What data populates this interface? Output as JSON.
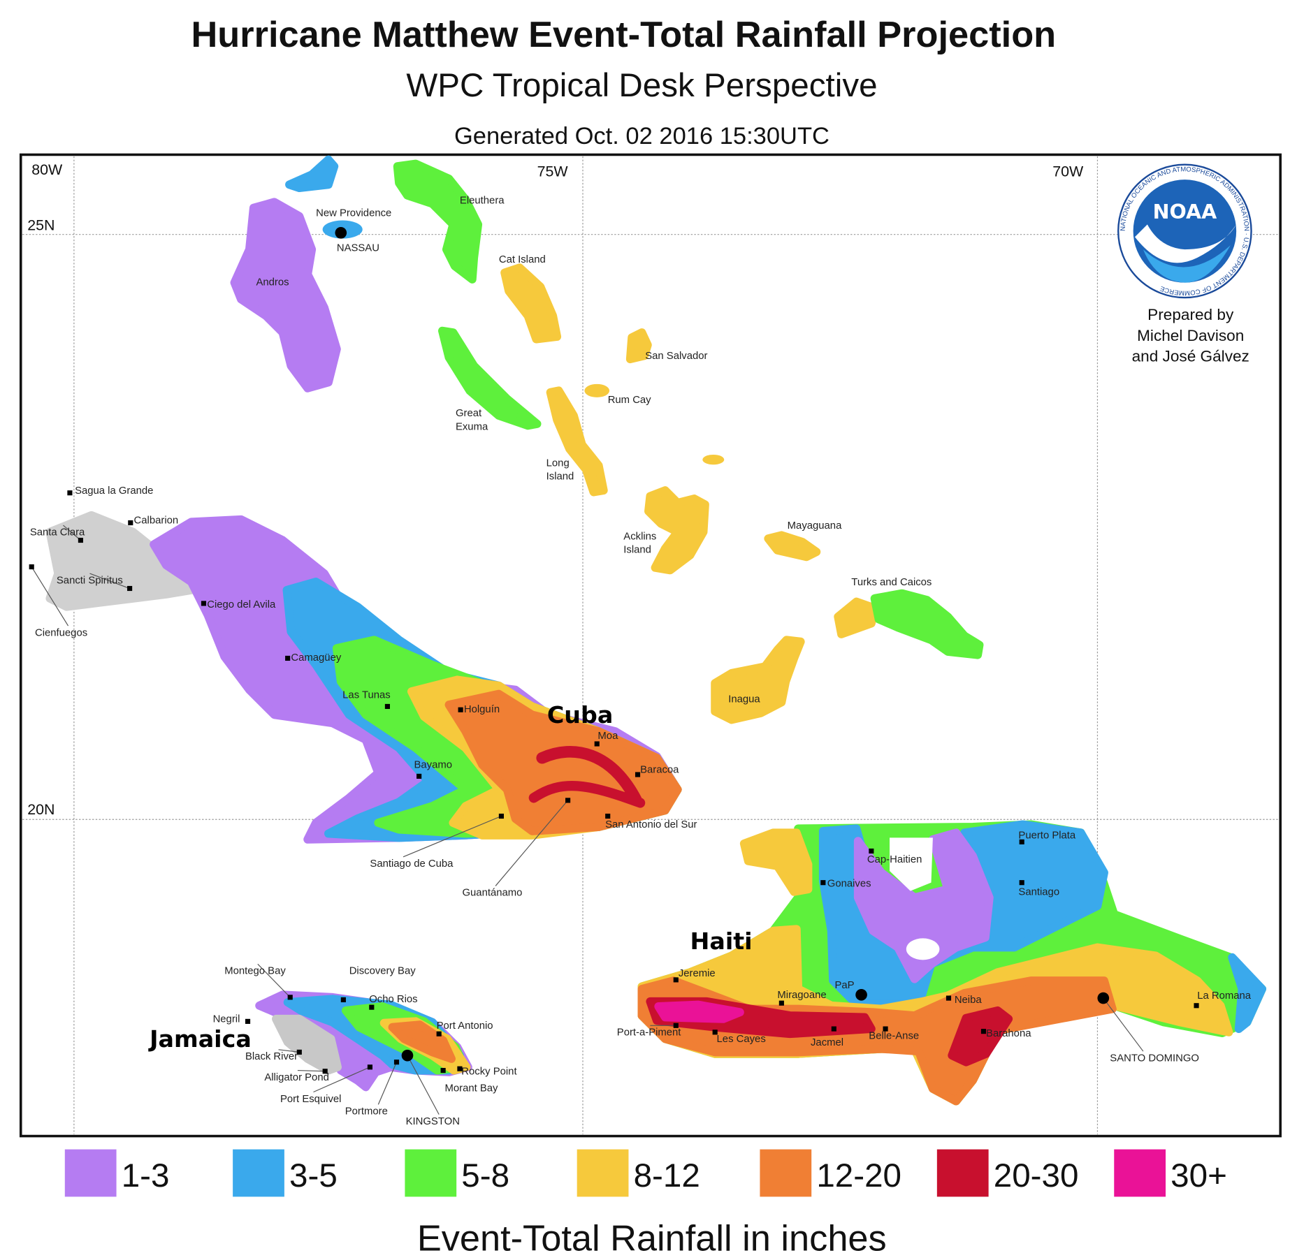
{
  "title": "Hurricane Matthew Event-Total Rainfall Projection",
  "subtitle": "WPC Tropical Desk Perspective",
  "generated": "Generated Oct. 02 2016 15:30UTC",
  "axes": {
    "lon": [
      "80W",
      "75W",
      "70W"
    ],
    "lat": [
      "25N",
      "20N"
    ]
  },
  "credits": {
    "lines": [
      "Prepared by",
      "Michel Davison",
      "and José Gálvez"
    ],
    "logo_text": "NOAA",
    "logo_ring": "NATIONAL OCEANIC AND ATMOSPHERIC ADMINISTRATION · U.S. DEPARTMENT OF COMMERCE"
  },
  "regions": {
    "cuba": "Cuba",
    "haiti": "Haiti",
    "jamaica": "Jamaica"
  },
  "places": [
    "New Providence",
    "NASSAU",
    "Eleuthera",
    "Cat Island",
    "Andros",
    "San Salvador",
    "Rum Cay",
    "Great Exuma",
    "Long Island",
    "Acklins Island",
    "Mayaguana",
    "Turks and Caicos",
    "Inagua",
    "Sagua la Grande",
    "Calbarion",
    "Santa Clara",
    "Sancti Spiritus",
    "Cienfuegos",
    "Ciego del Avila",
    "Camagüey",
    "Las Tunas",
    "Holguín",
    "Moa",
    "Baracoa",
    "Bayamo",
    "San Antonio del Sur",
    "Santiago de Cuba",
    "Guantánamo",
    "Cap-Haitien",
    "Gonaives",
    "Puerto Plata",
    "Santiago",
    "Jeremie",
    "Miragoane",
    "PaP",
    "Neiba",
    "La Romana",
    "Port-a-Piment",
    "Les Cayes",
    "Jacmel",
    "Belle-Anse",
    "Barahona",
    "SANTO DOMINGO",
    "Montego Bay",
    "Discovery Bay",
    "Ocho Rios",
    "Negril",
    "Port Antonio",
    "Black River",
    "Alligator Pond",
    "Rocky Point",
    "Morant Bay",
    "Port Esquivel",
    "Portmore",
    "KINGSTON"
  ],
  "legend": {
    "title": "Event-Total Rainfall in inches",
    "items": [
      {
        "label": "1-3",
        "color": "#b57cf2"
      },
      {
        "label": "3-5",
        "color": "#3aa9ec"
      },
      {
        "label": "5-8",
        "color": "#5ef03c"
      },
      {
        "label": "8-12",
        "color": "#f6c93c"
      },
      {
        "label": "12-20",
        "color": "#f07f34"
      },
      {
        "label": "20-30",
        "color": "#c8102e"
      },
      {
        "label": "30+",
        "color": "#ea1297"
      }
    ]
  }
}
